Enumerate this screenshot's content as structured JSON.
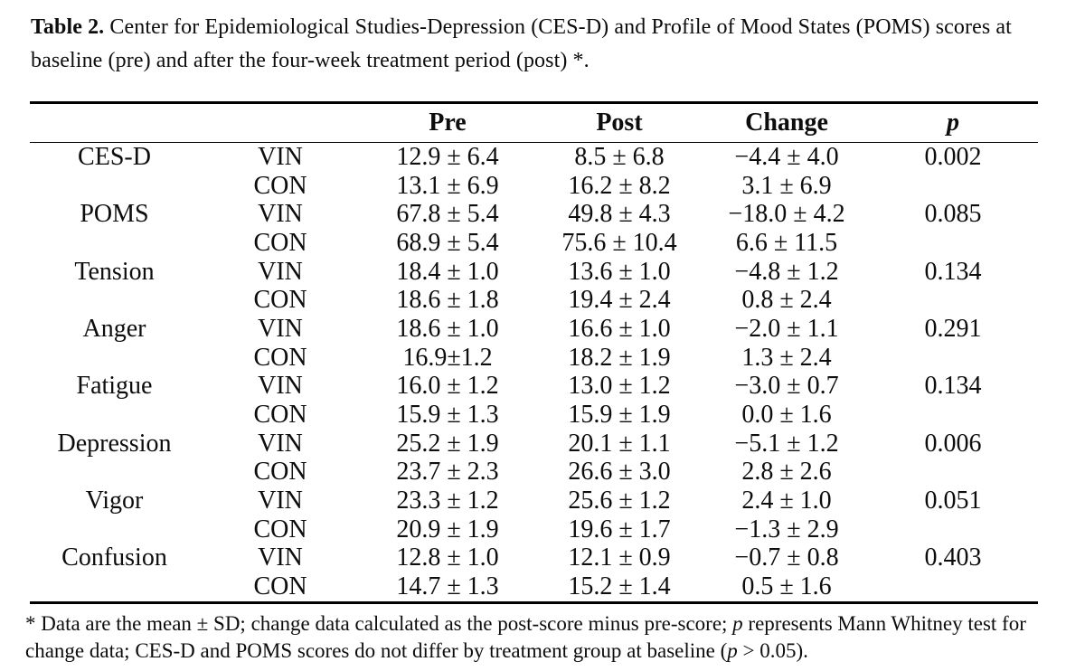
{
  "caption": {
    "label": "Table 2.",
    "text": "Center for Epidemiological Studies-Depression (CES-D) and Profile of Mood States (POMS) scores at baseline (pre) and after the four-week treatment period (post) *."
  },
  "table": {
    "col_headers": {
      "measure": "",
      "group": "",
      "pre": "Pre",
      "post": "Post",
      "change": "Change",
      "p": "p"
    },
    "rows": [
      {
        "measure": "CES-D",
        "group": "VIN",
        "pre": "12.9 ± 6.4",
        "post": "8.5 ± 6.8",
        "change": "−4.4 ± 4.0",
        "p": "0.002"
      },
      {
        "measure": "",
        "group": "CON",
        "pre": "13.1 ± 6.9",
        "post": "16.2 ± 8.2",
        "change": "3.1 ± 6.9",
        "p": ""
      },
      {
        "measure": "POMS",
        "group": "VIN",
        "pre": "67.8 ± 5.4",
        "post": "49.8 ± 4.3",
        "change": "−18.0 ± 4.2",
        "p": "0.085"
      },
      {
        "measure": "",
        "group": "CON",
        "pre": "68.9 ± 5.4",
        "post": "75.6 ± 10.4",
        "change": "6.6 ± 11.5",
        "p": ""
      },
      {
        "measure": "Tension",
        "group": "VIN",
        "pre": "18.4 ± 1.0",
        "post": "13.6 ± 1.0",
        "change": "−4.8 ± 1.2",
        "p": "0.134"
      },
      {
        "measure": "",
        "group": "CON",
        "pre": "18.6 ± 1.8",
        "post": "19.4 ± 2.4",
        "change": "0.8 ± 2.4",
        "p": ""
      },
      {
        "measure": "Anger",
        "group": "VIN",
        "pre": "18.6 ± 1.0",
        "post": "16.6 ± 1.0",
        "change": "−2.0 ± 1.1",
        "p": "0.291"
      },
      {
        "measure": "",
        "group": "CON",
        "pre": "16.9±1.2",
        "post": "18.2 ± 1.9",
        "change": "1.3 ± 2.4",
        "p": ""
      },
      {
        "measure": "Fatigue",
        "group": "VIN",
        "pre": "16.0 ± 1.2",
        "post": "13.0 ± 1.2",
        "change": "−3.0 ± 0.7",
        "p": "0.134"
      },
      {
        "measure": "",
        "group": "CON",
        "pre": "15.9 ± 1.3",
        "post": "15.9 ± 1.9",
        "change": "0.0 ± 1.6",
        "p": ""
      },
      {
        "measure": "Depression",
        "group": "VIN",
        "pre": "25.2 ± 1.9",
        "post": "20.1 ± 1.1",
        "change": "−5.1 ± 1.2",
        "p": "0.006"
      },
      {
        "measure": "",
        "group": "CON",
        "pre": "23.7 ± 2.3",
        "post": "26.6 ± 3.0",
        "change": "2.8 ± 2.6",
        "p": ""
      },
      {
        "measure": "Vigor",
        "group": "VIN",
        "pre": "23.3 ± 1.2",
        "post": "25.6 ± 1.2",
        "change": "2.4 ± 1.0",
        "p": "0.051"
      },
      {
        "measure": "",
        "group": "CON",
        "pre": "20.9 ± 1.9",
        "post": "19.6 ± 1.7",
        "change": "−1.3 ± 2.9",
        "p": ""
      },
      {
        "measure": "Confusion",
        "group": "VIN",
        "pre": "12.8 ± 1.0",
        "post": "12.1 ± 0.9",
        "change": "−0.7 ± 0.8",
        "p": "0.403"
      },
      {
        "measure": "",
        "group": "CON",
        "pre": "14.7 ± 1.3",
        "post": "15.2 ± 1.4",
        "change": "0.5 ± 1.6",
        "p": ""
      }
    ]
  },
  "footnote": {
    "marker": "*",
    "segment1": " Data are the mean ± SD; change data calculated as the post-score minus pre-score; ",
    "p1": "p",
    "segment2": " represents Mann Whitney test for change data; CES-D and POMS scores do not differ by treatment group at baseline (",
    "p2": "p",
    "segment3": " > 0.05)."
  }
}
